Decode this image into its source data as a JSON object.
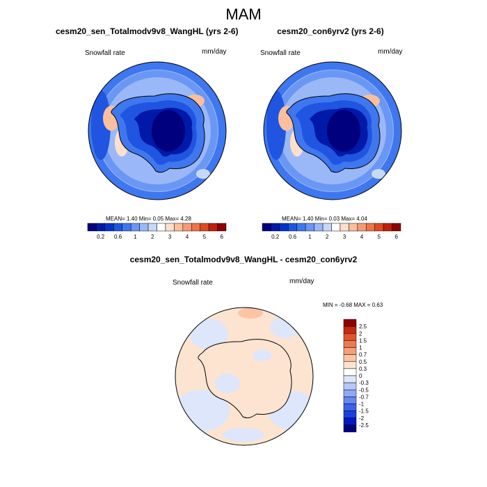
{
  "main_title": "MAM",
  "panels": [
    {
      "title": "cesm20_sen_Totalmodv9v8_WangHL (yrs 2-6)",
      "variable": "Snowfall rate",
      "units": "mm/day",
      "stats": "MEAN=   1.40   Min=   0.05   Max=   4.28"
    },
    {
      "title": "cesm20_con6yrv2 (yrs 2-6)",
      "variable": "Snowfall rate",
      "units": "mm/day",
      "stats": "MEAN=   1.40   Min=   0.03   Max=   4.04"
    },
    {
      "title": "cesm20_sen_Totalmodv9v8_WangHL - cesm20_con6yrv2",
      "variable": "Snowfall rate",
      "units": "mm/day",
      "stats": "MIN =  -0.68 MAX =    0.63"
    }
  ],
  "abs_colorbar": {
    "colors": [
      "#00007f",
      "#0019a8",
      "#0033cc",
      "#1f55e0",
      "#3f77ef",
      "#6a97f4",
      "#9ab8f7",
      "#c7d9f9",
      "#ffffff",
      "#fde0cc",
      "#fbbf9e",
      "#f59b73",
      "#ee7448",
      "#e04a22",
      "#c11f0a",
      "#8f0000"
    ],
    "tick_labels": [
      "0.2",
      "0.6",
      "1",
      "2",
      "3",
      "4",
      "5",
      "6"
    ]
  },
  "diff_colorbar": {
    "colors": [
      "#00007f",
      "#0019c0",
      "#1a3fe0",
      "#3c62ea",
      "#6688f0",
      "#8fa9f4",
      "#b6c8f7",
      "#dde6fb",
      "#ffffff",
      "#fde4d0",
      "#fbc5a5",
      "#f5a07a",
      "#ee7a52",
      "#e2532c",
      "#c8280c",
      "#8f0000"
    ],
    "tick_labels": [
      "2.5",
      "2",
      "1.5",
      "1",
      "0.7",
      "0.5",
      "0.3",
      "0",
      "-0.3",
      "-0.5",
      "-0.7",
      "-1",
      "-1.5",
      "-2",
      "-2.5"
    ]
  }
}
